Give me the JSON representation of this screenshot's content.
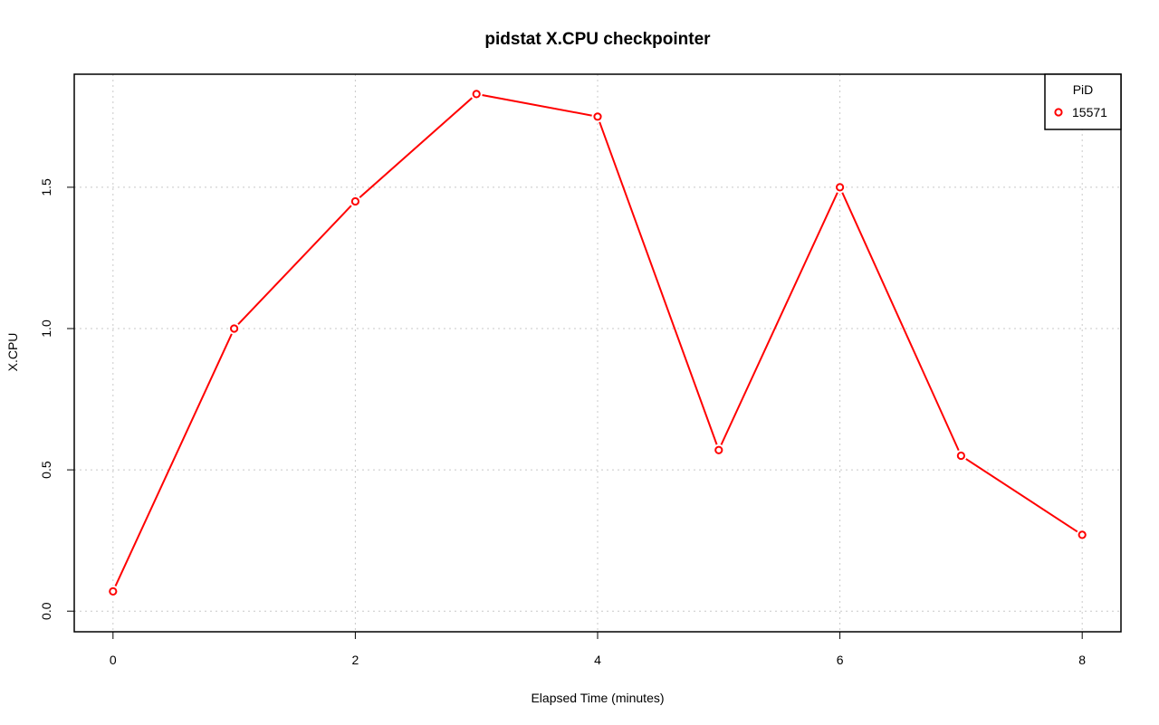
{
  "chart_data": {
    "type": "line",
    "title": "pidstat X.CPU checkpointer",
    "xlabel": "Elapsed Time (minutes)",
    "ylabel": "X.CPU",
    "xlim": [
      -0.32,
      8.32
    ],
    "ylim": [
      -0.073,
      1.9
    ],
    "x_ticks": [
      "0",
      "2",
      "4",
      "6",
      "8"
    ],
    "y_ticks": [
      "0.0",
      "0.5",
      "1.0",
      "1.5"
    ],
    "grid": true,
    "legend": {
      "title": "PiD",
      "position": "top-right"
    },
    "series": [
      {
        "name": "15571",
        "color": "#ff0000",
        "marker": "open-circle",
        "x": [
          0,
          1,
          2,
          3,
          4,
          5,
          6,
          7,
          8
        ],
        "y": [
          0.07,
          1.0,
          1.45,
          1.83,
          1.75,
          0.57,
          1.5,
          0.55,
          0.27
        ]
      }
    ]
  }
}
